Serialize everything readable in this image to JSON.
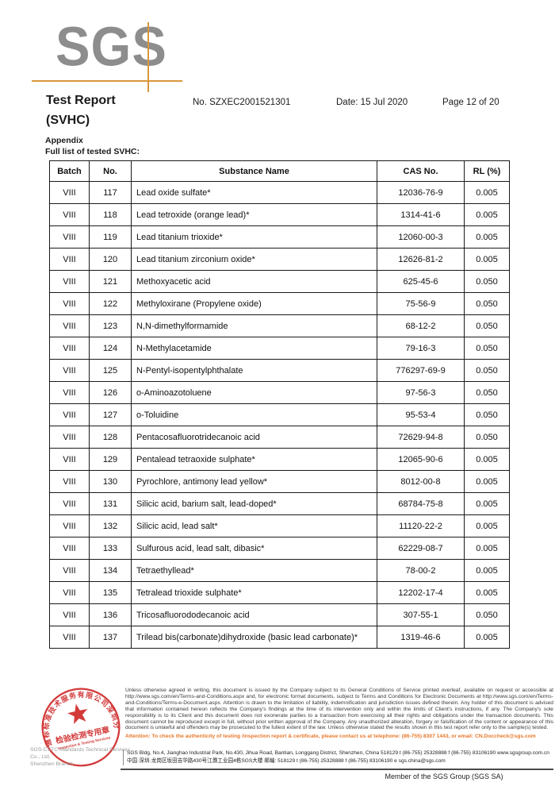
{
  "logo": {
    "text": "SGS"
  },
  "header": {
    "title": "Test Report",
    "subtitle": "(SVHC)",
    "report_no": "No. SZXEC2001521301",
    "date": "Date: 15 Jul 2020",
    "page": "Page 12 of 20"
  },
  "appendix": {
    "heading": "Appendix",
    "subheading": "Full list of tested SVHC:"
  },
  "table": {
    "columns": [
      "Batch",
      "No.",
      "Substance Name",
      "CAS No.",
      "RL (%)"
    ],
    "rows": [
      [
        "VIII",
        "117",
        "Lead oxide sulfate*",
        "12036-76-9",
        "0.005"
      ],
      [
        "VIII",
        "118",
        "Lead tetroxide (orange lead)*",
        "1314-41-6",
        "0.005"
      ],
      [
        "VIII",
        "119",
        "Lead titanium trioxide*",
        "12060-00-3",
        "0.005"
      ],
      [
        "VIII",
        "120",
        "Lead titanium zirconium oxide*",
        "12626-81-2",
        "0.005"
      ],
      [
        "VIII",
        "121",
        "Methoxyacetic acid",
        "625-45-6",
        "0.050"
      ],
      [
        "VIII",
        "122",
        "Methyloxirane (Propylene oxide)",
        "75-56-9",
        "0.050"
      ],
      [
        "VIII",
        "123",
        "N,N-dimethylformamide",
        "68-12-2",
        "0.050"
      ],
      [
        "VIII",
        "124",
        "N-Methylacetamide",
        "79-16-3",
        "0.050"
      ],
      [
        "VIII",
        "125",
        "N-Pentyl-isopentylphthalate",
        "776297-69-9",
        "0.050"
      ],
      [
        "VIII",
        "126",
        "o-Aminoazotoluene",
        "97-56-3",
        "0.050"
      ],
      [
        "VIII",
        "127",
        "o-Toluidine",
        "95-53-4",
        "0.050"
      ],
      [
        "VIII",
        "128",
        "Pentacosafluorotridecanoic acid",
        "72629-94-8",
        "0.050"
      ],
      [
        "VIII",
        "129",
        "Pentalead tetraoxide sulphate*",
        "12065-90-6",
        "0.005"
      ],
      [
        "VIII",
        "130",
        "Pyrochlore, antimony lead yellow*",
        "8012-00-8",
        "0.005"
      ],
      [
        "VIII",
        "131",
        "Silicic acid, barium salt, lead-doped*",
        "68784-75-8",
        "0.005"
      ],
      [
        "VIII",
        "132",
        "Silicic acid, lead salt*",
        "11120-22-2",
        "0.005"
      ],
      [
        "VIII",
        "133",
        "Sulfurous acid, lead salt, dibasic*",
        "62229-08-7",
        "0.005"
      ],
      [
        "VIII",
        "134",
        "Tetraethyllead*",
        "78-00-2",
        "0.005"
      ],
      [
        "VIII",
        "135",
        "Tetralead trioxide sulphate*",
        "12202-17-4",
        "0.005"
      ],
      [
        "VIII",
        "136",
        "Tricosafluorododecanoic acid",
        "307-55-1",
        "0.050"
      ],
      [
        "VIII",
        "137",
        "Trilead bis(carbonate)dihydroxide (basic lead carbonate)*",
        "1319-46-6",
        "0.005"
      ]
    ]
  },
  "stamp": {
    "ring_text": "通标标准技术服务有限公司深圳分公司",
    "center_line1": "检验检测专用章",
    "center_line2": "Inspection & Testing Services"
  },
  "footer": {
    "company_line1": "SGS-CSTC Standards Technical Services Co., Ltd.",
    "company_line2": "Shenzhen Branch",
    "legal": "Unless otherwise agreed in writing, this document is issued by the Company subject to its General Conditions of Service printed overleaf, available on request or accessible at http://www.sgs.com/en/Terms-and-Conditions.aspx and, for electronic format documents, subject to Terms and Conditions for Electronic Documents at http://www.sgs.com/en/Terms-and-Conditions/Terms-e-Document.aspx. Attention is drawn to the limitation of liability, indemnification and jurisdiction issues defined therein. Any holder of this document is advised that information contained hereon reflects the Company's findings at the time of its intervention only and within the limits of Client's instructions, if any. The Company's sole responsibility is to its Client and this document does not exonerate parties to a transaction from exercising all their rights and obligations under the transaction documents. This document cannot be reproduced except in full, without prior written approval of the Company. Any unauthorized alteration, forgery or falsification of the content or appearance of this document is unlawful and offenders may be prosecuted to the fullest extent of the law. Unless otherwise stated the results shown in this test report refer only to the sample(s) tested.",
    "attention": "Attention: To check the authenticity of testing /inspection report & certificate, please contact us at telephone: (86-755) 8307 1443, or email: CN.Doccheck@sgs.com",
    "address_line1": "SGS Bldg, No.4, Jianghao Industrial Park, No.430, Jihua Road, Bantian, Longgang District, Shenzhen, China 518129    t (86-755) 25328888    f (86-755) 83106190    www.sgsgroup.com.cn",
    "address_line2": "中国·深圳·龙岗区坂田吉华路430号江灏工业园4栋SGS大楼    邮编: 518129    t (86-755) 25328888    f (86-755) 83106190    e sgs.china@sgs.com",
    "member": "Member of the SGS Group (SGS SA)"
  },
  "colors": {
    "logo_gray": "#8d8d8d",
    "accent_orange": "#d9973c",
    "stamp_red": "#cf2525",
    "attention_orange": "#e8782a"
  }
}
